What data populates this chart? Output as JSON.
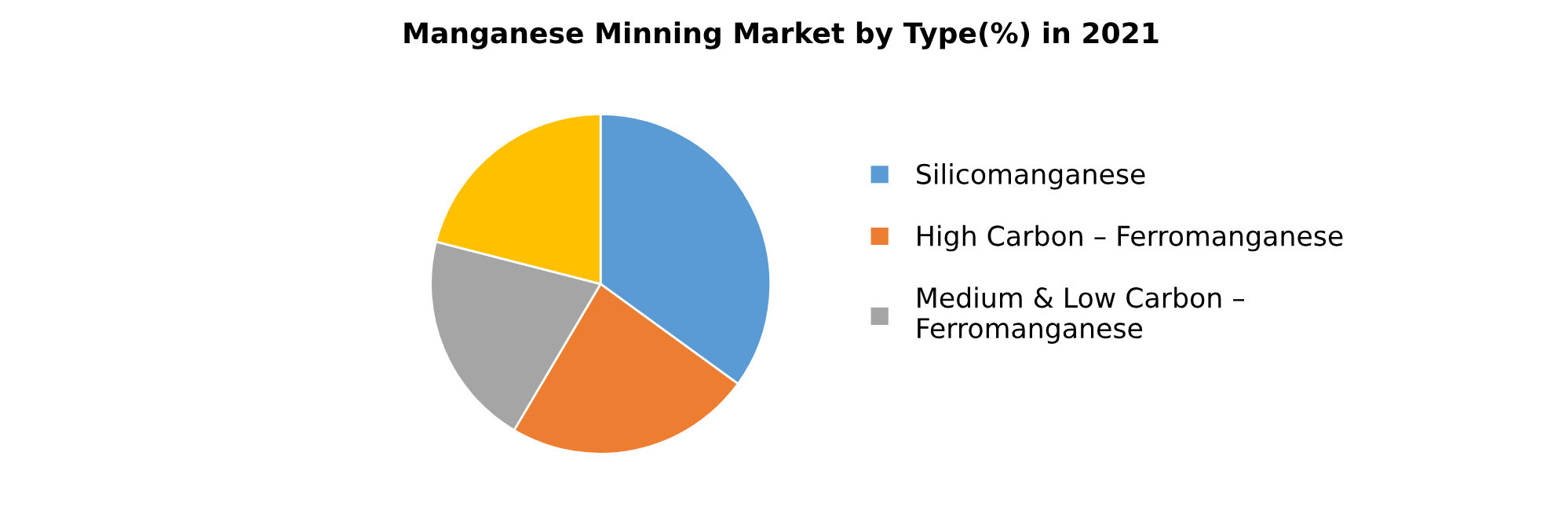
{
  "chart_data": {
    "type": "pie",
    "title": "Manganese Minning Market by Type(%) in 2021",
    "categories": [
      "Silicomanganese",
      "High Carbon – Ferromanganese",
      "Medium & Low Carbon –\nFerromanganese",
      null
    ],
    "values": [
      35,
      23.5,
      20.5,
      21
    ],
    "colors": [
      "#5b9bd5",
      "#ed7d31",
      "#a5a5a5",
      "#ffc000"
    ],
    "legend": "right"
  }
}
